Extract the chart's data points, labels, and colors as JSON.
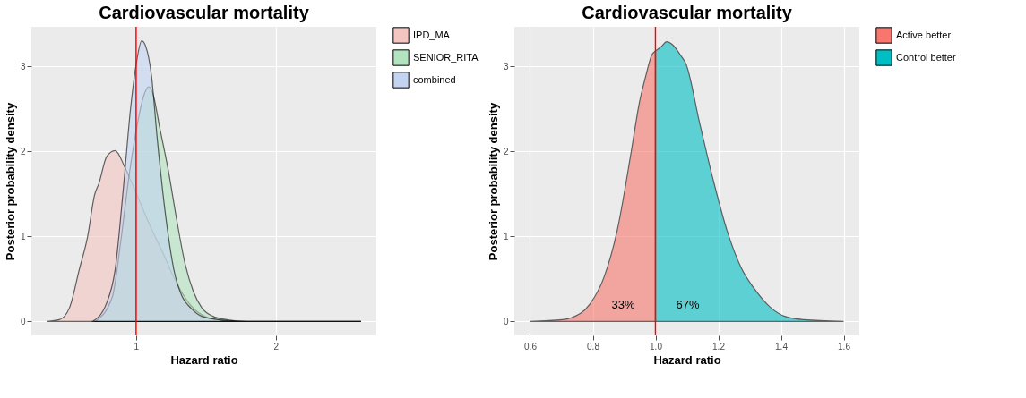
{
  "chart_data": [
    {
      "type": "area",
      "title": "Cardiovascular mortality",
      "xlabel": "Hazard ratio",
      "ylabel": "Posterior probability density",
      "xlim": [
        0.25,
        2.72
      ],
      "ylim": [
        -0.165,
        3.465
      ],
      "xticks": [
        1,
        2
      ],
      "yticks": [
        0,
        1,
        2,
        3
      ],
      "grid": true,
      "legend": "right",
      "series": [
        {
          "name": "IPD_MA",
          "color": "#f4c5c1",
          "x": [
            0.363,
            0.45,
            0.523,
            0.593,
            0.653,
            0.703,
            0.733,
            0.79,
            0.85,
            0.92,
            0.99,
            1.09,
            1.19,
            1.29,
            1.39,
            1.49,
            1.59,
            1.79,
            2.61
          ],
          "values": [
            0,
            0.02,
            0.16,
            0.61,
            1.0,
            1.49,
            1.62,
            1.94,
            2.01,
            1.81,
            1.55,
            1.16,
            0.81,
            0.45,
            0.19,
            0.06,
            0.02,
            0,
            0
          ]
        },
        {
          "name": "SENIOR_RITA",
          "color": "#b3e3bf",
          "x": [
            0.71,
            0.83,
            0.89,
            0.95,
            1.01,
            1.05,
            1.09,
            1.12,
            1.17,
            1.23,
            1.29,
            1.35,
            1.41,
            1.47,
            1.55,
            1.65,
            1.79,
            2.61
          ],
          "values": [
            0,
            0.29,
            0.94,
            1.72,
            2.33,
            2.63,
            2.76,
            2.68,
            2.27,
            1.78,
            1.2,
            0.68,
            0.35,
            0.16,
            0.06,
            0.02,
            0,
            0
          ]
        },
        {
          "name": "combined",
          "color": "#c3d4f2",
          "x": [
            0.69,
            0.79,
            0.85,
            0.91,
            0.96,
            1.0,
            1.04,
            1.07,
            1.11,
            1.15,
            1.21,
            1.27,
            1.33,
            1.39,
            1.47,
            1.59,
            1.71,
            2.61
          ],
          "values": [
            0,
            0.22,
            0.61,
            1.59,
            2.5,
            3.02,
            3.3,
            3.23,
            2.89,
            2.17,
            1.26,
            0.61,
            0.29,
            0.16,
            0.06,
            0.02,
            0,
            0
          ]
        }
      ],
      "ref_lines": [
        {
          "axis": "x",
          "value": 1,
          "color": "#ff0000"
        }
      ]
    },
    {
      "type": "area",
      "title": "Cardiovascular mortality",
      "xlabel": "Hazard ratio",
      "ylabel": "Posterior probability density",
      "xlim": [
        0.55,
        1.65
      ],
      "ylim": [
        -0.165,
        3.465
      ],
      "xticks": [
        0.6,
        0.8,
        {
          "value": 1,
          "label": "1.0"
        },
        1.2,
        1.4,
        1.6
      ],
      "yticks": [
        0,
        1,
        2,
        3
      ],
      "grid": true,
      "legend": "right",
      "series": [
        {
          "name": "Active better",
          "color": "#f8766d",
          "x": [
            0.6,
            0.703,
            0.73,
            0.79,
            0.835,
            0.878,
            0.922,
            0.948,
            0.97,
            0.988,
            1.0
          ],
          "values": [
            0,
            0.02,
            0.04,
            0.2,
            0.51,
            1.07,
            1.98,
            2.56,
            2.9,
            3.13,
            3.18
          ]
        },
        {
          "name": "Control better",
          "color": "#00bfc4",
          "x": [
            1.0,
            1.018,
            1.036,
            1.053,
            1.08,
            1.097,
            1.141,
            1.185,
            1.228,
            1.272,
            1.316,
            1.368,
            1.412,
            1.473,
            1.6
          ],
          "values": [
            3.18,
            3.23,
            3.29,
            3.26,
            3.13,
            3.03,
            2.33,
            1.65,
            1.07,
            0.64,
            0.38,
            0.16,
            0.06,
            0.02,
            0
          ]
        }
      ],
      "ref_lines": [
        {
          "axis": "x",
          "value": 1,
          "color": "#ff0000"
        }
      ],
      "annotations": [
        "33%",
        "67%"
      ]
    }
  ]
}
